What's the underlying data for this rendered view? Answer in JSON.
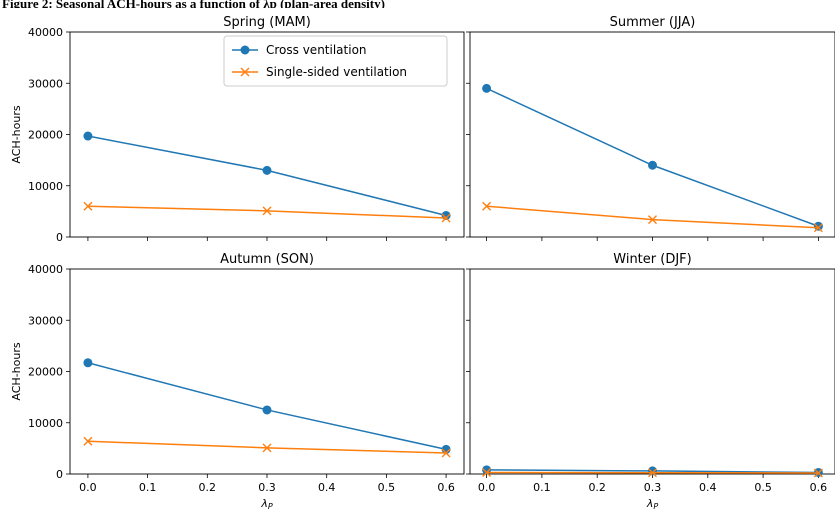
{
  "caption": "Figure 2: Seasonal ACH-hours as a function of λp (plan-area density)",
  "chart_data": [
    {
      "type": "line",
      "title": "Spring (MAM)",
      "x": [
        0.0,
        0.3,
        0.6
      ],
      "xticks": [
        "0.0",
        "0.1",
        "0.2",
        "0.3",
        "0.4",
        "0.5",
        "0.6"
      ],
      "xlabel": "",
      "ylabel": "ACH-hours",
      "yticks": [
        "0",
        "10000",
        "20000",
        "30000",
        "40000"
      ],
      "ylim": [
        0,
        40000
      ],
      "legend_position": "top-right",
      "series": [
        {
          "name": "Cross ventilation",
          "values": [
            19700,
            13000,
            4200
          ],
          "color": "#1f77b4",
          "marker": "circle"
        },
        {
          "name": "Single-sided ventilation",
          "values": [
            6000,
            5100,
            3700
          ],
          "color": "#ff7f0e",
          "marker": "x"
        }
      ]
    },
    {
      "type": "line",
      "title": "Summer (JJA)",
      "x": [
        0.0,
        0.3,
        0.6
      ],
      "xticks": [
        "0.0",
        "0.1",
        "0.2",
        "0.3",
        "0.4",
        "0.5",
        "0.6"
      ],
      "xlabel": "",
      "ylabel": "",
      "ylim": [
        0,
        40000
      ],
      "series": [
        {
          "name": "Cross ventilation",
          "values": [
            29000,
            14000,
            2100
          ],
          "color": "#1f77b4",
          "marker": "circle"
        },
        {
          "name": "Single-sided ventilation",
          "values": [
            6000,
            3400,
            1800
          ],
          "color": "#ff7f0e",
          "marker": "x"
        }
      ]
    },
    {
      "type": "line",
      "title": "Autumn (SON)",
      "x": [
        0.0,
        0.3,
        0.6
      ],
      "xticks": [
        "0.0",
        "0.1",
        "0.2",
        "0.3",
        "0.4",
        "0.5",
        "0.6"
      ],
      "xlabel": "λP",
      "ylabel": "ACH-hours",
      "yticks": [
        "0",
        "10000",
        "20000",
        "30000",
        "40000"
      ],
      "ylim": [
        0,
        40000
      ],
      "series": [
        {
          "name": "Cross ventilation",
          "values": [
            21700,
            12500,
            4800
          ],
          "color": "#1f77b4",
          "marker": "circle"
        },
        {
          "name": "Single-sided ventilation",
          "values": [
            6400,
            5100,
            4100
          ],
          "color": "#ff7f0e",
          "marker": "x"
        }
      ]
    },
    {
      "type": "line",
      "title": "Winter (DJF)",
      "x": [
        0.0,
        0.3,
        0.6
      ],
      "xticks": [
        "0.0",
        "0.1",
        "0.2",
        "0.3",
        "0.4",
        "0.5",
        "0.6"
      ],
      "xlabel": "λP",
      "ylabel": "",
      "ylim": [
        0,
        40000
      ],
      "series": [
        {
          "name": "Cross ventilation",
          "values": [
            800,
            600,
            300
          ],
          "color": "#1f77b4",
          "marker": "circle"
        },
        {
          "name": "Single-sided ventilation",
          "values": [
            300,
            250,
            200
          ],
          "color": "#ff7f0e",
          "marker": "x"
        }
      ]
    }
  ]
}
